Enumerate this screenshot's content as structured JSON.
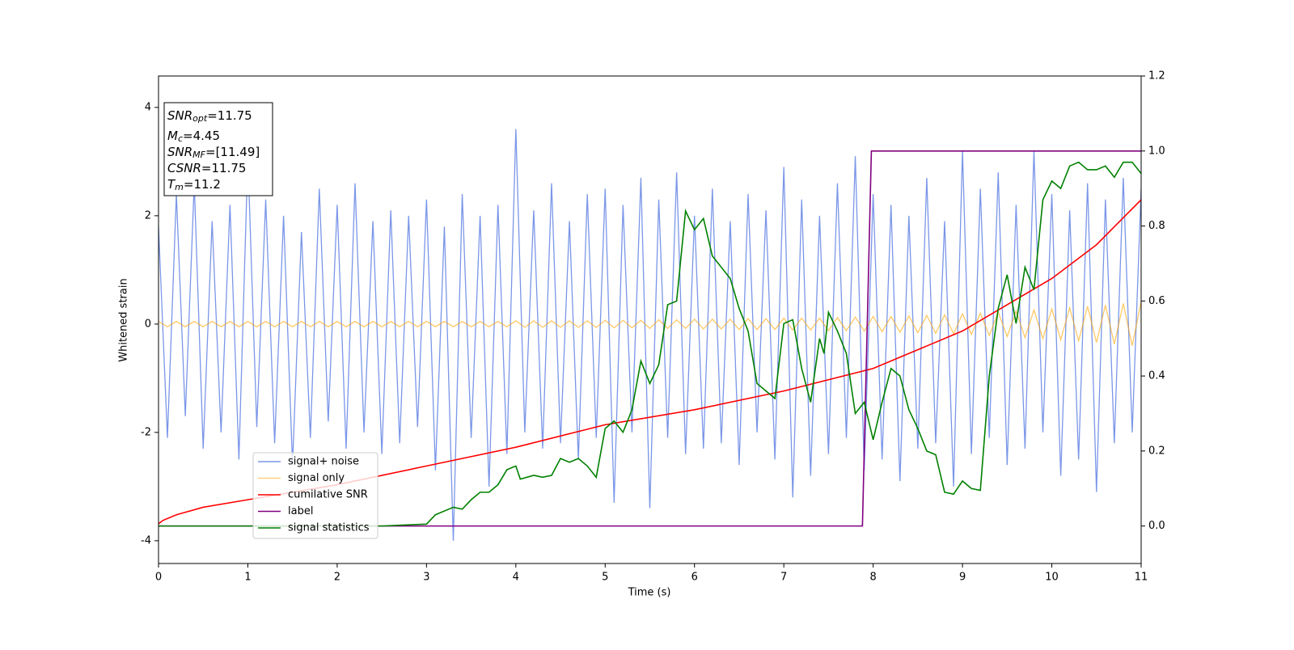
{
  "chart_data": {
    "type": "line",
    "xlabel": "Time (s)",
    "ylabel": "Whitened strain",
    "xlim": [
      0,
      11
    ],
    "xticks": [
      0,
      1,
      2,
      3,
      4,
      5,
      6,
      7,
      8,
      9,
      10,
      11
    ],
    "ylim": [
      -4.42,
      4.58
    ],
    "yticks": [
      -4,
      -2,
      0,
      2,
      4
    ],
    "y2lim": [
      -0.1,
      1.2
    ],
    "y2ticks": [
      0.0,
      0.2,
      0.4,
      0.6,
      0.8,
      1.0,
      1.2
    ],
    "y2tick_labels": [
      "0.0",
      "0.2",
      "0.4",
      "0.6",
      "0.8",
      "1.0",
      "1.2"
    ],
    "legend": "lower left",
    "annotations": [
      {
        "base": "SNR",
        "sub": "opt",
        "text": "=11.75"
      },
      {
        "base": "M",
        "sub": "c",
        "text": "=4.45"
      },
      {
        "base": "SNR",
        "sub": "MF",
        "text": "=[11.49]"
      },
      {
        "base": "CSNR",
        "sub": "",
        "text": "=11.75"
      },
      {
        "base": "T",
        "sub": "m",
        "text": "=11.2"
      }
    ],
    "series": [
      {
        "name": "signal+ noise",
        "color": "#7a96e8",
        "axis": "y",
        "x": [
          0,
          0.1,
          0.2,
          0.3,
          0.4,
          0.5,
          0.6,
          0.7,
          0.8,
          0.9,
          1,
          1.1,
          1.2,
          1.3,
          1.4,
          1.5,
          1.6,
          1.7,
          1.8,
          1.9,
          2,
          2.1,
          2.2,
          2.3,
          2.4,
          2.5,
          2.6,
          2.7,
          2.8,
          2.9,
          3,
          3.1,
          3.2,
          3.3,
          3.4,
          3.5,
          3.6,
          3.7,
          3.8,
          3.9,
          4,
          4.1,
          4.2,
          4.3,
          4.4,
          4.5,
          4.6,
          4.7,
          4.8,
          4.9,
          5,
          5.1,
          5.2,
          5.3,
          5.4,
          5.5,
          5.6,
          5.7,
          5.8,
          5.9,
          6,
          6.1,
          6.2,
          6.3,
          6.4,
          6.5,
          6.6,
          6.7,
          6.8,
          6.9,
          7,
          7.1,
          7.2,
          7.3,
          7.4,
          7.5,
          7.6,
          7.7,
          7.8,
          7.9,
          8,
          8.1,
          8.2,
          8.3,
          8.4,
          8.5,
          8.6,
          8.7,
          8.8,
          8.9,
          9,
          9.1,
          9.2,
          9.3,
          9.4,
          9.5,
          9.6,
          9.7,
          9.8,
          9.9,
          10,
          10.1,
          10.2,
          10.3,
          10.4,
          10.5,
          10.6,
          10.7,
          10.8,
          10.9,
          11
        ],
        "values": [
          1.8,
          -2.1,
          2.4,
          -1.7,
          2.6,
          -2.3,
          1.9,
          -2.0,
          2.2,
          -2.5,
          3.1,
          -1.9,
          2.3,
          -2.2,
          2.0,
          -2.6,
          1.7,
          -2.1,
          2.5,
          -1.8,
          2.2,
          -2.3,
          2.6,
          -2.0,
          1.9,
          -2.4,
          2.1,
          -2.2,
          2.0,
          -1.9,
          2.3,
          -2.7,
          1.8,
          -4.0,
          2.4,
          -2.1,
          2.0,
          -3.0,
          2.2,
          -2.4,
          3.6,
          -2.0,
          2.1,
          -2.3,
          2.6,
          -2.2,
          1.9,
          -2.5,
          2.4,
          -2.1,
          2.5,
          -3.3,
          2.2,
          -2.0,
          2.7,
          -3.4,
          2.3,
          -2.1,
          2.8,
          -2.4,
          2.0,
          -2.3,
          2.5,
          -2.2,
          1.9,
          -2.6,
          2.4,
          -2.0,
          2.1,
          -2.5,
          2.9,
          -3.2,
          2.3,
          -2.8,
          2.0,
          -2.4,
          2.6,
          -2.1,
          3.1,
          -2.7,
          2.4,
          -2.5,
          2.2,
          -2.9,
          2.0,
          -2.3,
          2.7,
          -2.2,
          1.9,
          -3.0,
          3.2,
          -2.4,
          2.5,
          -2.1,
          2.8,
          -2.6,
          2.2,
          -2.3,
          3.2,
          -2.0,
          2.4,
          -2.8,
          2.1,
          -2.5,
          2.6,
          -3.1,
          2.3,
          -2.2,
          2.7,
          -2.0,
          2.5
        ]
      },
      {
        "name": "signal only",
        "color": "#ffa500",
        "axis": "y",
        "x": [
          0,
          0.1,
          0.2,
          0.3,
          0.4,
          0.5,
          0.6,
          0.7,
          0.8,
          0.9,
          1,
          1.1,
          1.2,
          1.3,
          1.4,
          1.5,
          1.6,
          1.7,
          1.8,
          1.9,
          2,
          2.1,
          2.2,
          2.3,
          2.4,
          2.5,
          2.6,
          2.7,
          2.8,
          2.9,
          3,
          3.1,
          3.2,
          3.3,
          3.4,
          3.5,
          3.6,
          3.7,
          3.8,
          3.9,
          4,
          4.1,
          4.2,
          4.3,
          4.4,
          4.5,
          4.6,
          4.7,
          4.8,
          4.9,
          5,
          5.1,
          5.2,
          5.3,
          5.4,
          5.5,
          5.6,
          5.7,
          5.8,
          5.9,
          6,
          6.1,
          6.2,
          6.3,
          6.4,
          6.5,
          6.6,
          6.7,
          6.8,
          6.9,
          7,
          7.1,
          7.2,
          7.3,
          7.4,
          7.5,
          7.6,
          7.7,
          7.8,
          7.9,
          8,
          8.1,
          8.2,
          8.3,
          8.4,
          8.5,
          8.6,
          8.7,
          8.8,
          8.9,
          9,
          9.1,
          9.2,
          9.3,
          9.4,
          9.5,
          9.6,
          9.7,
          9.8,
          9.9,
          10,
          10.1,
          10.2,
          10.3,
          10.4,
          10.5,
          10.6,
          10.7,
          10.8,
          10.9,
          11
        ],
        "values": [
          0.05,
          -0.05,
          0.05,
          -0.05,
          0.05,
          -0.05,
          0.05,
          -0.05,
          0.05,
          -0.05,
          0.05,
          -0.05,
          0.05,
          -0.05,
          0.05,
          -0.05,
          0.05,
          -0.05,
          0.05,
          -0.05,
          0.05,
          -0.05,
          0.05,
          -0.05,
          0.05,
          -0.05,
          0.05,
          -0.05,
          0.05,
          -0.05,
          0.05,
          -0.05,
          0.05,
          -0.05,
          0.05,
          -0.05,
          0.05,
          -0.05,
          0.05,
          -0.05,
          0.06,
          -0.06,
          0.06,
          -0.06,
          0.06,
          -0.06,
          0.06,
          -0.06,
          0.06,
          -0.06,
          0.07,
          -0.07,
          0.07,
          -0.07,
          0.07,
          -0.08,
          0.08,
          -0.08,
          0.08,
          -0.08,
          0.09,
          -0.09,
          0.09,
          -0.09,
          0.09,
          -0.1,
          0.1,
          -0.1,
          0.1,
          -0.1,
          0.11,
          -0.11,
          0.11,
          -0.11,
          0.11,
          -0.12,
          0.12,
          -0.12,
          0.13,
          -0.13,
          0.14,
          -0.14,
          0.14,
          -0.15,
          0.15,
          -0.16,
          0.16,
          -0.17,
          0.17,
          -0.18,
          0.19,
          -0.19,
          0.2,
          -0.21,
          0.22,
          -0.23,
          0.24,
          -0.25,
          0.26,
          -0.27,
          0.28,
          -0.29,
          0.3,
          -0.31,
          0.33,
          -0.34,
          0.35,
          -0.37,
          0.38,
          -0.4,
          0.42
        ]
      },
      {
        "name": "cumilative SNR",
        "color": "#ff0000",
        "axis": "y2",
        "x": [
          0,
          0.05,
          0.2,
          0.5,
          1,
          2,
          3,
          4,
          5,
          6,
          7,
          8,
          9,
          10,
          10.5,
          11
        ],
        "values": [
          0.006,
          0.015,
          0.03,
          0.05,
          0.07,
          0.11,
          0.16,
          0.21,
          0.27,
          0.31,
          0.36,
          0.42,
          0.52,
          0.66,
          0.75,
          0.87
        ]
      },
      {
        "name": "label",
        "color": "#800080",
        "axis": "y2",
        "x": [
          0,
          7.88,
          7.98,
          11
        ],
        "values": [
          0,
          0,
          1,
          1
        ]
      },
      {
        "name": "signal statistics",
        "color": "#008000",
        "axis": "y2",
        "x": [
          0,
          2.5,
          2.8,
          3,
          3.1,
          3.3,
          3.4,
          3.5,
          3.6,
          3.7,
          3.8,
          3.9,
          4,
          4.05,
          4.2,
          4.3,
          4.4,
          4.5,
          4.6,
          4.7,
          4.8,
          4.9,
          5,
          5.1,
          5.2,
          5.3,
          5.4,
          5.5,
          5.6,
          5.7,
          5.8,
          5.9,
          6,
          6.1,
          6.2,
          6.3,
          6.4,
          6.5,
          6.6,
          6.7,
          6.8,
          6.9,
          7,
          7.1,
          7.2,
          7.3,
          7.4,
          7.45,
          7.5,
          7.6,
          7.7,
          7.8,
          7.9,
          8,
          8.1,
          8.2,
          8.3,
          8.4,
          8.5,
          8.6,
          8.7,
          8.8,
          8.9,
          9,
          9.1,
          9.2,
          9.3,
          9.4,
          9.5,
          9.6,
          9.7,
          9.8,
          9.9,
          10,
          10.1,
          10.2,
          10.3,
          10.4,
          10.5,
          10.6,
          10.7,
          10.8,
          10.9,
          11
        ],
        "values": [
          0,
          0,
          0.003,
          0.005,
          0.03,
          0.05,
          0.045,
          0.07,
          0.09,
          0.09,
          0.11,
          0.15,
          0.16,
          0.125,
          0.135,
          0.13,
          0.135,
          0.18,
          0.17,
          0.18,
          0.16,
          0.13,
          0.26,
          0.28,
          0.25,
          0.31,
          0.44,
          0.38,
          0.43,
          0.59,
          0.6,
          0.84,
          0.79,
          0.82,
          0.72,
          0.69,
          0.66,
          0.58,
          0.52,
          0.38,
          0.36,
          0.34,
          0.54,
          0.55,
          0.42,
          0.33,
          0.5,
          0.46,
          0.57,
          0.52,
          0.46,
          0.3,
          0.33,
          0.23,
          0.33,
          0.42,
          0.4,
          0.31,
          0.26,
          0.2,
          0.19,
          0.09,
          0.085,
          0.12,
          0.1,
          0.095,
          0.4,
          0.58,
          0.67,
          0.54,
          0.69,
          0.63,
          0.87,
          0.92,
          0.9,
          0.96,
          0.97,
          0.95,
          0.95,
          0.96,
          0.93,
          0.97,
          0.97,
          0.94
        ]
      }
    ]
  }
}
